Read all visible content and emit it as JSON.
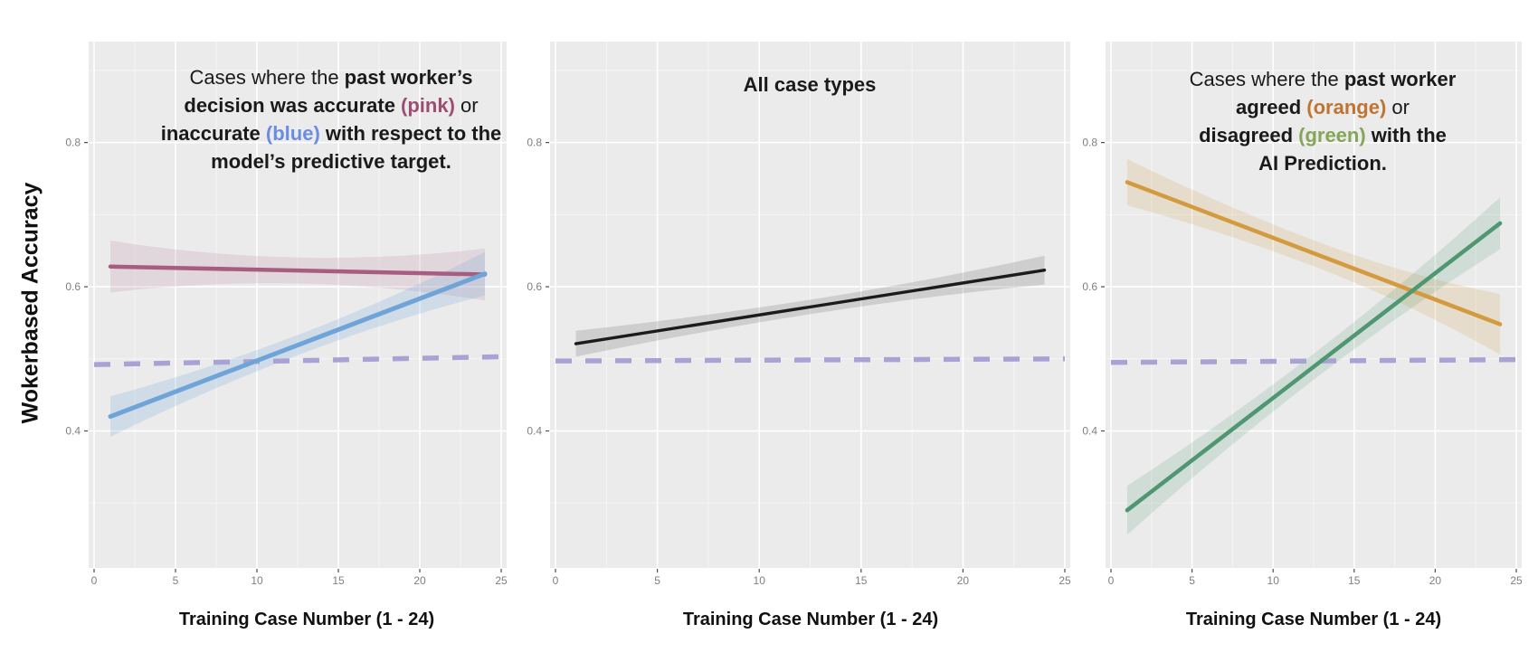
{
  "y_axis_label": "Wokerbased Accuracy",
  "colors": {
    "panel_background": "#ebebeb",
    "grid_major": "#ffffff",
    "grid_minor": "#f5f5f5",
    "tick_text": "#7f7f7f",
    "tick_mark": "#4d4d4d",
    "title_text": "#1a1a1a",
    "pink": "#a85d80",
    "blue": "#6fa4d8",
    "black": "#1b1b1b",
    "orange": "#d49a3f",
    "green": "#4f9673",
    "chance_dashed": "#a9a2d5",
    "pink_label": "#9d4d71",
    "blue_label": "#6a8ce2",
    "orange_label": "#bf7433",
    "green_label": "#85a557"
  },
  "chart_data": [
    {
      "type": "line",
      "title_lines": [
        [
          {
            "t": "Cases where the ",
            "b": false
          },
          {
            "t": "past worker’s",
            "b": true
          }
        ],
        [
          {
            "t": "decision was accurate ",
            "b": true
          },
          {
            "t": "(pink)",
            "b": true,
            "c": "#9d4d71"
          },
          {
            "t": " or",
            "b": false
          }
        ],
        [
          {
            "t": "inaccurate ",
            "b": true
          },
          {
            "t": "(blue)",
            "b": true,
            "c": "#6a8ce2"
          },
          {
            "t": " with respect to the",
            "b": true
          }
        ],
        [
          {
            "t": "model’s predictive target.",
            "b": true
          }
        ]
      ],
      "xlabel": "Training Case Number (1 - 24)",
      "ylabel": "Wokerbased Accuracy",
      "xlim": [
        0,
        25
      ],
      "ylim": [
        0.21,
        0.94
      ],
      "x_ticks": [
        0,
        5,
        10,
        15,
        20,
        25
      ],
      "x_tick_labels": [
        "0",
        "5",
        "10",
        "15",
        "20",
        "25"
      ],
      "y_ticks": [
        0.4,
        0.6,
        0.8
      ],
      "y_tick_labels": [
        "0.4",
        "0.6",
        "0.8"
      ],
      "grid": true,
      "legend": "none (colors referenced in title)",
      "series": [
        {
          "id": "accurate-pink",
          "name": "past worker decision accurate (pink)",
          "color": "#a85d80",
          "band_color": "rgba(168,93,128,0.15)",
          "x": [
            1,
            24
          ],
          "y": [
            0.628,
            0.617
          ],
          "ci_half_width": {
            "left": 0.036,
            "mid": 0.018,
            "right": 0.036
          },
          "line_width": 4.5
        },
        {
          "id": "inaccurate-blue",
          "name": "past worker decision inaccurate (blue)",
          "color": "#6fa4d8",
          "band_color": "rgba(111,164,216,0.22)",
          "x": [
            1,
            24
          ],
          "y": [
            0.42,
            0.618
          ],
          "ci_half_width": {
            "left": 0.028,
            "mid": 0.014,
            "right": 0.03
          },
          "line_width": 5
        }
      ],
      "baseline": {
        "id": "chance-line",
        "style": "dashed",
        "color": "#a9a2d5",
        "x": [
          0,
          25
        ],
        "y": [
          0.492,
          0.503
        ],
        "line_width": 5.5
      }
    },
    {
      "type": "line",
      "title_lines": [
        [
          {
            "t": "All case types",
            "b": true
          }
        ]
      ],
      "xlabel": "Training Case Number (1 - 24)",
      "ylabel": "Wokerbased Accuracy",
      "xlim": [
        0,
        25
      ],
      "ylim": [
        0.21,
        0.94
      ],
      "x_ticks": [
        0,
        5,
        10,
        15,
        20,
        25
      ],
      "x_tick_labels": [
        "0",
        "5",
        "10",
        "15",
        "20",
        "25"
      ],
      "y_ticks": [
        0.4,
        0.6,
        0.8
      ],
      "y_tick_labels": [
        "0.4",
        "0.6",
        "0.8"
      ],
      "grid": true,
      "legend": "none",
      "series": [
        {
          "id": "all-cases",
          "name": "all case types (black)",
          "color": "#1b1b1b",
          "band_color": "rgba(80,80,80,0.18)",
          "x": [
            1,
            24
          ],
          "y": [
            0.521,
            0.623
          ],
          "ci_half_width": {
            "left": 0.018,
            "mid": 0.01,
            "right": 0.02
          },
          "line_width": 3.4
        }
      ],
      "baseline": {
        "id": "chance-line",
        "style": "dashed",
        "color": "#a9a2d5",
        "x": [
          0,
          25
        ],
        "y": [
          0.497,
          0.5
        ],
        "line_width": 5.5
      }
    },
    {
      "type": "line",
      "title_lines": [
        [
          {
            "t": "Cases where the ",
            "b": false
          },
          {
            "t": "past worker",
            "b": true
          }
        ],
        [
          {
            "t": "agreed ",
            "b": true
          },
          {
            "t": "(orange)",
            "b": true,
            "c": "#bf7433"
          },
          {
            "t": " or",
            "b": false
          }
        ],
        [
          {
            "t": "disagreed ",
            "b": true
          },
          {
            "t": "(green)",
            "b": true,
            "c": "#85a557"
          },
          {
            "t": " with the",
            "b": true
          }
        ],
        [
          {
            "t": "AI Prediction.",
            "b": true
          }
        ]
      ],
      "xlabel": "Training Case Number (1 - 24)",
      "ylabel": "Wokerbased Accuracy",
      "xlim": [
        0,
        25
      ],
      "ylim": [
        0.21,
        0.94
      ],
      "x_ticks": [
        0,
        5,
        10,
        15,
        20,
        25
      ],
      "x_tick_labels": [
        "0",
        "5",
        "10",
        "15",
        "20",
        "25"
      ],
      "y_ticks": [
        0.4,
        0.6,
        0.8
      ],
      "y_tick_labels": [
        "0.4",
        "0.6",
        "0.8"
      ],
      "grid": true,
      "legend": "none (colors referenced in title)",
      "series": [
        {
          "id": "agreed-orange",
          "name": "past worker agreed with AI (orange)",
          "color": "#d49a3f",
          "band_color": "rgba(212,154,63,0.18)",
          "x": [
            1,
            24
          ],
          "y": [
            0.745,
            0.548
          ],
          "ci_half_width": {
            "left": 0.032,
            "mid": 0.018,
            "right": 0.042
          },
          "line_width": 4.5
        },
        {
          "id": "disagreed-green",
          "name": "past worker disagreed with AI (green)",
          "color": "#4f9673",
          "band_color": "rgba(79,150,115,0.17)",
          "x": [
            1,
            24
          ],
          "y": [
            0.29,
            0.688
          ],
          "ci_half_width": {
            "left": 0.034,
            "mid": 0.018,
            "right": 0.036
          },
          "line_width": 4.5
        }
      ],
      "baseline": {
        "id": "chance-line",
        "style": "dashed",
        "color": "#a9a2d5",
        "x": [
          0,
          25
        ],
        "y": [
          0.495,
          0.499
        ],
        "line_width": 5.5
      }
    }
  ]
}
